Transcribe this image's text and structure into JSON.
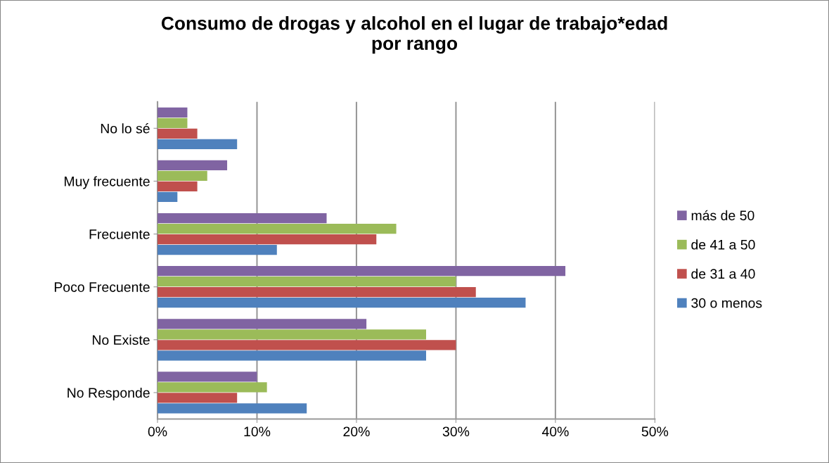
{
  "chart_data": {
    "type": "bar",
    "orientation": "horizontal",
    "title": "Consumo de drogas y alcohol en el lugar de trabajo*edad\npor rango",
    "categories": [
      "No lo sé",
      "Muy frecuente",
      "Frecuente",
      "Poco Frecuente",
      "No Existe",
      "No Responde"
    ],
    "series": [
      {
        "name": "más de 50",
        "color": "#8064a2",
        "values": [
          3,
          7,
          17,
          41,
          21,
          10
        ]
      },
      {
        "name": "de 41 a 50",
        "color": "#9bbb59",
        "values": [
          3,
          5,
          24,
          30,
          27,
          11
        ]
      },
      {
        "name": "de 31 a 40",
        "color": "#c0504d",
        "values": [
          4,
          4,
          22,
          32,
          30,
          8
        ]
      },
      {
        "name": "30 o menos",
        "color": "#4f81bd",
        "values": [
          8,
          2,
          12,
          37,
          27,
          15
        ]
      }
    ],
    "xlim": [
      0,
      50
    ],
    "xticks": [
      {
        "value": 0,
        "label": "0%"
      },
      {
        "value": 10,
        "label": "10%"
      },
      {
        "value": 20,
        "label": "20%"
      },
      {
        "value": 30,
        "label": "30%"
      },
      {
        "value": 40,
        "label": "40%"
      },
      {
        "value": 50,
        "label": "50%"
      }
    ],
    "grid": "x",
    "legend": "right"
  }
}
